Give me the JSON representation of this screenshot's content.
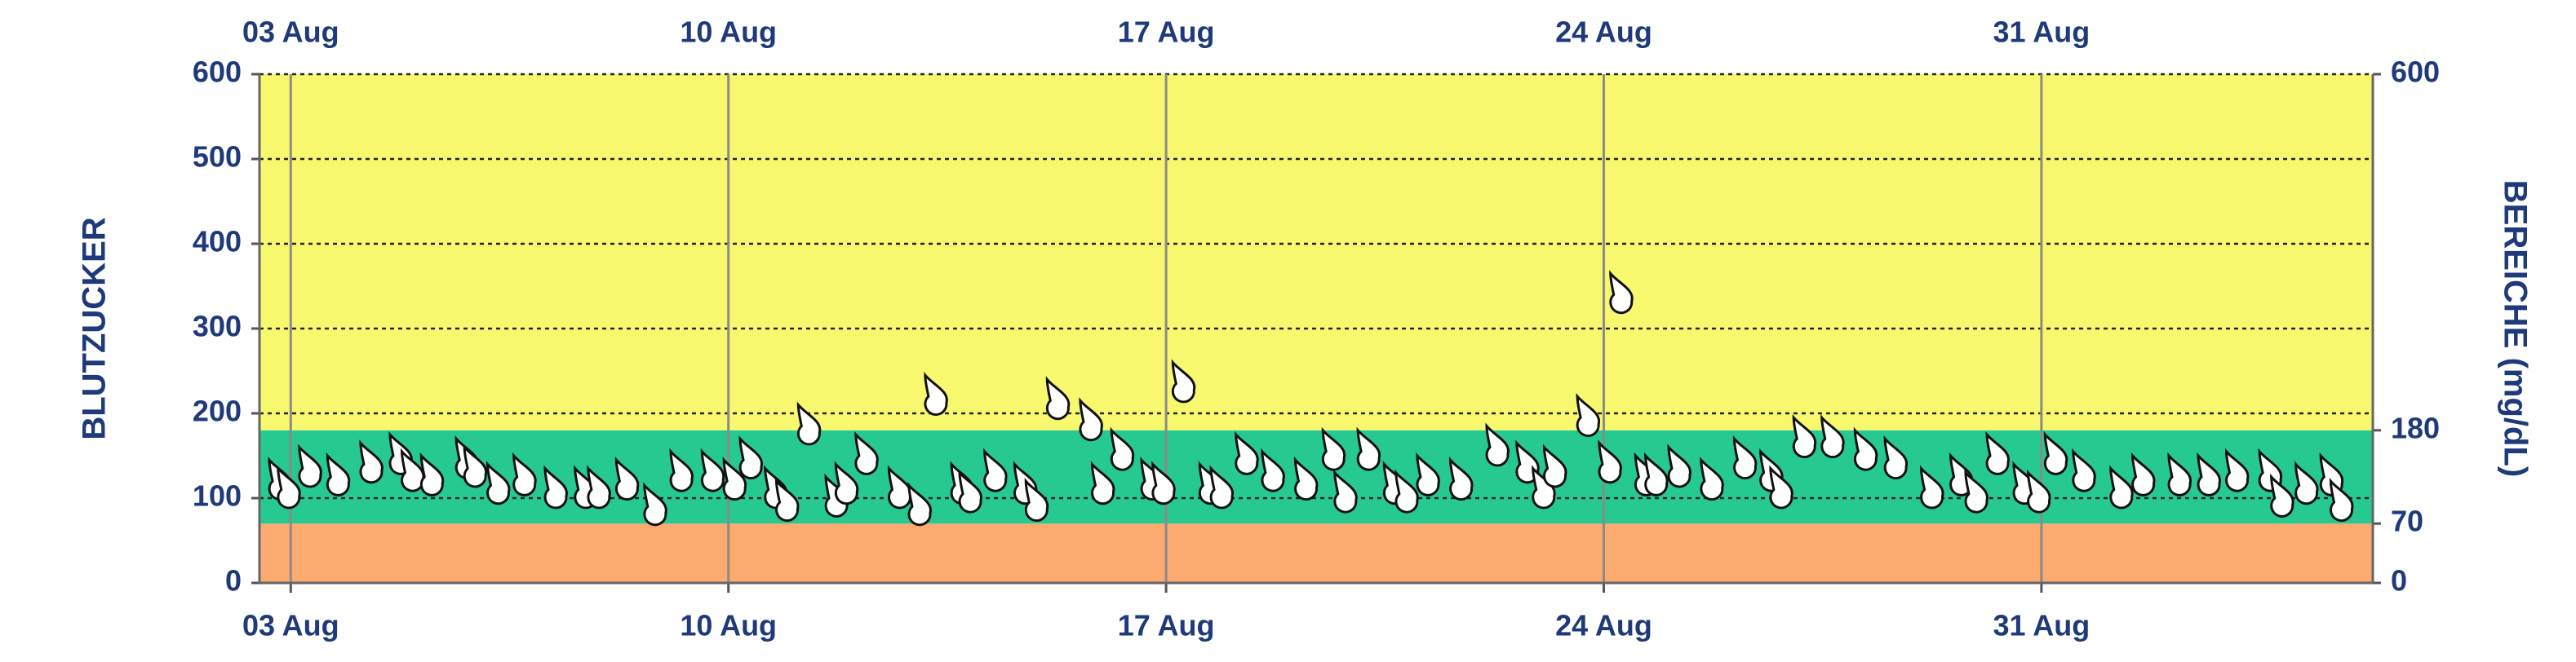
{
  "chart_data": {
    "type": "scatter",
    "y_label": "BLUTZUCKER",
    "y2_label": "BEREICHE (mg/dL)",
    "x": [
      2.84,
      2.98,
      3.32,
      3.77,
      4.3,
      4.77,
      4.96,
      5.27,
      5.83,
      5.96,
      6.33,
      6.75,
      7.25,
      7.73,
      7.94,
      8.39,
      8.84,
      9.26,
      9.76,
      10.11,
      10.37,
      10.77,
      10.95,
      11.3,
      11.74,
      11.9,
      12.22,
      12.75,
      13.07,
      13.33,
      13.75,
      13.88,
      14.28,
      14.76,
      14.94,
      15.28,
      15.81,
      16.0,
      16.31,
      16.79,
      16.97,
      17.29,
      17.72,
      17.9,
      18.3,
      18.72,
      19.25,
      19.69,
      19.88,
      20.25,
      20.67,
      20.86,
      21.2,
      21.73,
      22.31,
      22.79,
      23.05,
      23.23,
      23.76,
      24.11,
      24.29,
      24.69,
      24.85,
      25.22,
      25.74,
      26.27,
      26.69,
      26.85,
      27.22,
      27.67,
      28.2,
      28.68,
      29.26,
      29.73,
      29.97,
      30.31,
      30.74,
      30.97,
      31.24,
      31.69,
      32.29,
      32.64,
      33.22,
      33.69,
      34.14,
      34.67,
      34.86,
      35.25,
      35.65,
      35.81
    ],
    "values": [
      120,
      110,
      135,
      125,
      140,
      150,
      130,
      125,
      145,
      135,
      115,
      125,
      110,
      110,
      110,
      120,
      90,
      130,
      130,
      120,
      145,
      110,
      95,
      185,
      100,
      115,
      150,
      110,
      90,
      220,
      115,
      105,
      130,
      115,
      95,
      215,
      190,
      115,
      155,
      120,
      115,
      235,
      115,
      110,
      150,
      130,
      120,
      155,
      105,
      155,
      115,
      105,
      125,
      120,
      160,
      140,
      110,
      135,
      195,
      140,
      340,
      125,
      125,
      135,
      120,
      145,
      130,
      110,
      170,
      170,
      155,
      145,
      110,
      125,
      105,
      150,
      115,
      105,
      150,
      130,
      110,
      125,
      125,
      125,
      130,
      130,
      100,
      115,
      125,
      95
    ],
    "marker_color": "#ffffff",
    "xlim": [
      2.5,
      36.3
    ],
    "xticks": [
      {
        "value": 3,
        "label": "03 Aug"
      },
      {
        "value": 10,
        "label": "10 Aug"
      },
      {
        "value": 17,
        "label": "17 Aug"
      },
      {
        "value": 24,
        "label": "24 Aug"
      },
      {
        "value": 31,
        "label": "31 Aug"
      }
    ],
    "ylim": [
      0,
      600
    ],
    "yticks": [
      0,
      100,
      200,
      300,
      400,
      500,
      600
    ],
    "y2lim": [
      0,
      600
    ],
    "y2ticks": [
      0,
      70,
      180,
      600
    ],
    "band_colors": [
      "#fcaa70",
      "#26c98f",
      "#f8f86e"
    ],
    "grid": true
  }
}
